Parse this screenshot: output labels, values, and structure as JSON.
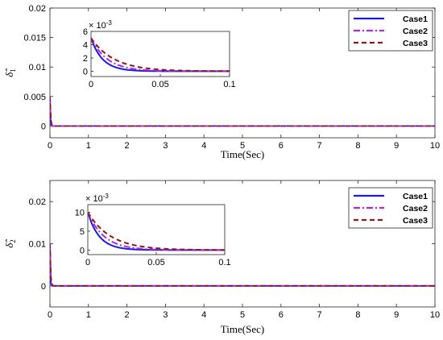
{
  "chart_data": [
    {
      "id": "top",
      "type": "line",
      "xlabel": "Time(Sec)",
      "ylabel_base": "δ̂",
      "ylabel_sub": "1",
      "xlim": [
        0,
        10
      ],
      "ylim": [
        -0.002,
        0.02
      ],
      "xticks": [
        "0",
        "1",
        "2",
        "3",
        "4",
        "5",
        "6",
        "7",
        "8",
        "9",
        "10"
      ],
      "yticks": [
        "0",
        "0.005",
        "0.01",
        "0.015",
        "0.02"
      ],
      "ytick_values": [
        0,
        0.005,
        0.01,
        0.015,
        0.02
      ],
      "legend_position": "top-right",
      "y0": [
        0.005,
        0.005,
        0.005
      ],
      "decay_rates": [
        120,
        85,
        60
      ],
      "series": [
        {
          "name": "Case1",
          "color": "#1a1ae6",
          "style": "solid"
        },
        {
          "name": "Case2",
          "color": "#b328e6",
          "style": "dashdot"
        },
        {
          "name": "Case3",
          "color": "#8b1a1a",
          "style": "dashed"
        }
      ],
      "inset": {
        "xlim": [
          0,
          0.1
        ],
        "ylim": [
          -0.0008,
          0.006
        ],
        "xticks": [
          "0",
          "0.05",
          "0.1"
        ],
        "xtick_values": [
          0,
          0.05,
          0.1
        ],
        "yticks": [
          "0",
          "2",
          "4",
          "6"
        ],
        "ytick_values": [
          0,
          0.002,
          0.004,
          0.006
        ],
        "exponent_label": "× 10",
        "exponent_power": "-3"
      }
    },
    {
      "id": "bottom",
      "type": "line",
      "xlabel": "Time(Sec)",
      "ylabel_base": "δ̂",
      "ylabel_sub": "2",
      "xlim": [
        0,
        10
      ],
      "ylim": [
        -0.005,
        0.025
      ],
      "xticks": [
        "0",
        "1",
        "2",
        "3",
        "4",
        "5",
        "6",
        "7",
        "8",
        "9",
        "10"
      ],
      "yticks": [
        "0",
        "0.01",
        "0.02"
      ],
      "ytick_values": [
        0,
        0.01,
        0.02
      ],
      "legend_position": "top-right",
      "y0": [
        0.01,
        0.01,
        0.01
      ],
      "decay_rates": [
        120,
        85,
        60
      ],
      "series": [
        {
          "name": "Case1",
          "color": "#1a1ae6",
          "style": "solid"
        },
        {
          "name": "Case2",
          "color": "#b328e6",
          "style": "dashdot"
        },
        {
          "name": "Case3",
          "color": "#8b1a1a",
          "style": "dashed"
        }
      ],
      "inset": {
        "xlim": [
          0,
          0.1
        ],
        "ylim": [
          -0.0012,
          0.012
        ],
        "xticks": [
          "0",
          "0.05",
          "0.1"
        ],
        "xtick_values": [
          0,
          0.05,
          0.1
        ],
        "yticks": [
          "0",
          "5",
          "10"
        ],
        "ytick_values": [
          0,
          0.005,
          0.01
        ],
        "exponent_label": "× 10",
        "exponent_power": "-3"
      }
    }
  ]
}
